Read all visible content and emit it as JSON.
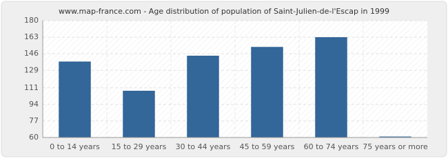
{
  "chart_data": {
    "type": "bar",
    "title": "www.map-france.com - Age distribution of population of Saint-Julien-de-l'Escap in 1999",
    "categories": [
      "0 to 14 years",
      "15 to 29 years",
      "30 to 44 years",
      "45 to 59 years",
      "60 to 74 years",
      "75 years or more"
    ],
    "values": [
      138,
      108,
      144,
      153,
      163,
      61
    ],
    "color": "#336699",
    "ylim": [
      60,
      180
    ],
    "yticks": [
      60,
      77,
      94,
      111,
      129,
      146,
      163,
      180
    ],
    "grid": true
  }
}
